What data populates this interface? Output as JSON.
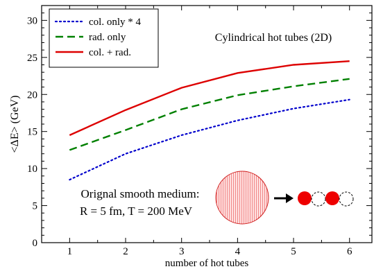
{
  "chart_data": {
    "type": "line",
    "title": "",
    "annotation": "Cylindrical hot tubes (2D)",
    "xlabel": "number of hot tubes",
    "ylabel": "<ΔE> (GeV)",
    "xlim": [
      0.5,
      6.4
    ],
    "ylim": [
      0,
      32
    ],
    "x_ticks": [
      "1",
      "2",
      "3",
      "4",
      "5",
      "6"
    ],
    "y_ticks": [
      "0",
      "5",
      "10",
      "15",
      "20",
      "25",
      "30"
    ],
    "grid": false,
    "legend_position": "top-left",
    "x": [
      1,
      2,
      3,
      4,
      5,
      6
    ],
    "series": [
      {
        "name": "col. only * 4",
        "values": [
          8.5,
          12.0,
          14.5,
          16.5,
          18.1,
          19.3
        ],
        "color": "#0000cc",
        "style": "dotted"
      },
      {
        "name": "rad. only",
        "values": [
          12.5,
          15.2,
          18.0,
          19.9,
          21.1,
          22.1
        ],
        "color": "#008000",
        "style": "dashed"
      },
      {
        "name": "col. + rad.",
        "values": [
          14.5,
          17.9,
          20.9,
          22.9,
          24.0,
          24.5
        ],
        "color": "#dd0000",
        "style": "solid"
      }
    ],
    "inset": {
      "text_line1": "Orignal smooth medium:",
      "text_line2": "R = 5 fm, T = 200 MeV",
      "colors": {
        "tube": "#ee0000",
        "disk": "#ffd0d0",
        "hatch": "#e03030"
      }
    }
  }
}
